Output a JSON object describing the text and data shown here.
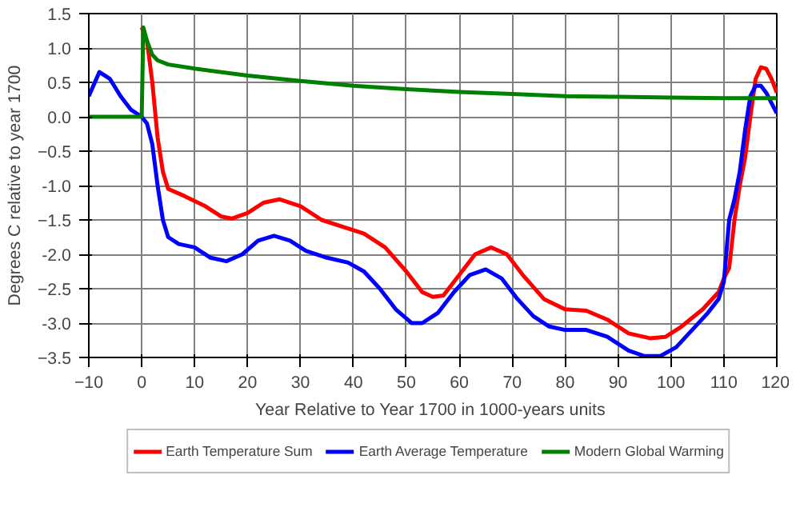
{
  "chart_data": {
    "type": "line",
    "xlabel": "Year Relative to Year 1700  in 1000-years units",
    "ylabel": "Degrees C relative to year 1700",
    "xlim": [
      -10,
      120
    ],
    "ylim": [
      -3.5,
      1.5
    ],
    "xticks": [
      -10,
      0,
      10,
      20,
      30,
      40,
      50,
      60,
      70,
      80,
      90,
      100,
      110,
      120
    ],
    "yticks": [
      -3.5,
      {
        "value": -3,
        "label": "-3.0"
      },
      -2.5,
      {
        "value": -2,
        "label": "-2.0"
      },
      -1.5,
      {
        "value": -1,
        "label": "-1.0"
      },
      -0.5,
      {
        "value": 0,
        "label": "0.0"
      },
      0.5,
      {
        "value": 1,
        "label": "1.0"
      },
      1.5
    ],
    "grid": true,
    "legend": "bottom",
    "line_style": "solid",
    "marker": "none",
    "series": [
      {
        "name": "Earth Temperature Sum",
        "color": "#ff0000",
        "x": [
          0,
          1,
          2,
          3,
          4,
          5,
          8,
          12,
          15,
          17,
          20,
          23,
          26,
          30,
          34,
          38,
          42,
          46,
          50,
          53,
          55,
          57,
          60,
          63,
          66,
          69,
          72,
          76,
          80,
          84,
          88,
          92,
          96,
          99,
          102,
          106,
          109,
          110,
          111,
          112,
          113,
          114,
          115,
          116,
          117,
          118,
          119,
          120
        ],
        "values": [
          1.3,
          1.1,
          0.5,
          -0.3,
          -0.8,
          -1.05,
          -1.15,
          -1.3,
          -1.45,
          -1.48,
          -1.4,
          -1.25,
          -1.2,
          -1.3,
          -1.5,
          -1.6,
          -1.7,
          -1.9,
          -2.25,
          -2.55,
          -2.62,
          -2.6,
          -2.3,
          -2.0,
          -1.9,
          -2.0,
          -2.3,
          -2.65,
          -2.8,
          -2.82,
          -2.95,
          -3.15,
          -3.22,
          -3.2,
          -3.05,
          -2.8,
          -2.55,
          -2.35,
          -2.2,
          -1.5,
          -1.0,
          -0.6,
          0.0,
          0.55,
          0.72,
          0.7,
          0.55,
          0.35
        ]
      },
      {
        "name": "Earth Average Temperature",
        "color": "#0000ff",
        "x": [
          -10,
          -8,
          -6,
          -4,
          -2,
          0,
          1,
          2,
          3,
          4,
          5,
          7,
          10,
          13,
          16,
          19,
          22,
          25,
          28,
          31,
          35,
          39,
          42,
          45,
          48,
          51,
          53,
          56,
          59,
          62,
          65,
          68,
          71,
          74,
          77,
          80,
          84,
          88,
          92,
          95,
          98,
          101,
          104,
          107,
          109,
          110,
          111,
          112,
          113,
          114,
          115,
          116,
          117,
          118,
          119,
          120
        ],
        "values": [
          0.3,
          0.65,
          0.55,
          0.3,
          0.1,
          0.0,
          -0.1,
          -0.4,
          -1.0,
          -1.5,
          -1.75,
          -1.85,
          -1.9,
          -2.05,
          -2.1,
          -2.0,
          -1.8,
          -1.73,
          -1.8,
          -1.95,
          -2.05,
          -2.12,
          -2.25,
          -2.5,
          -2.8,
          -3.0,
          -3.0,
          -2.85,
          -2.55,
          -2.3,
          -2.22,
          -2.35,
          -2.65,
          -2.9,
          -3.05,
          -3.1,
          -3.1,
          -3.2,
          -3.4,
          -3.48,
          -3.48,
          -3.35,
          -3.1,
          -2.85,
          -2.65,
          -2.4,
          -1.5,
          -1.2,
          -0.8,
          -0.2,
          0.3,
          0.45,
          0.45,
          0.35,
          0.2,
          0.05
        ]
      },
      {
        "name": "Modern Global Warming",
        "color": "#008000",
        "x": [
          -10,
          0,
          0.3,
          1,
          2,
          3,
          5,
          10,
          20,
          30,
          40,
          50,
          60,
          70,
          80,
          90,
          100,
          110,
          120
        ],
        "values": [
          0.0,
          0.0,
          1.3,
          1.1,
          0.9,
          0.82,
          0.76,
          0.7,
          0.6,
          0.52,
          0.45,
          0.4,
          0.36,
          0.33,
          0.3,
          0.29,
          0.28,
          0.27,
          0.27
        ]
      }
    ]
  }
}
